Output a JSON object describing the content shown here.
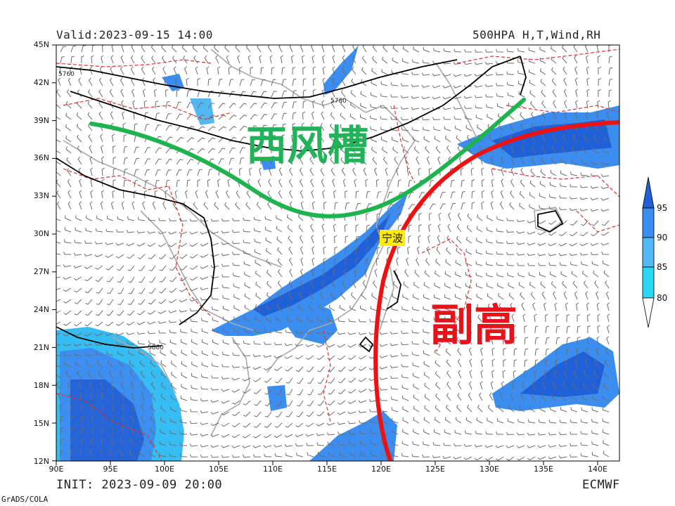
{
  "header": {
    "valid_label": "Valid:2023-09-15 14:00",
    "product_label": "500HPA H,T,Wind,RH"
  },
  "footer": {
    "init_label": "INIT: 2023-09-09 20:00",
    "model_label": "ECMWF",
    "credit_label": "GrADS/COLA"
  },
  "map": {
    "lon_range": [
      90,
      142
    ],
    "lat_range": [
      12,
      45
    ],
    "lat_ticks": [
      "45N",
      "42N",
      "39N",
      "36N",
      "33N",
      "30N",
      "27N",
      "24N",
      "21N",
      "18N",
      "15N",
      "12N"
    ],
    "lon_ticks": [
      "90E",
      "95E",
      "100E",
      "105E",
      "110E",
      "115E",
      "120E",
      "125E",
      "130E",
      "135E",
      "140E"
    ],
    "contour_labels": [
      "5760",
      "5780",
      "5880"
    ]
  },
  "annotations": {
    "trough_label": "西风槽",
    "subtropical_high_label": "副高",
    "city_label": "宁波"
  },
  "colorbar": {
    "levels": [
      "95",
      "90",
      "85",
      "80"
    ],
    "colors": [
      "#1f5fd8",
      "#3b8df0",
      "#52b8f4",
      "#29d6f4"
    ]
  },
  "colors": {
    "trough_line": "#1db34f",
    "high_line": "#ee1111",
    "height_contour": "#000000",
    "temperature_contour": "#e03030",
    "coastline": "#a8a8a8"
  }
}
